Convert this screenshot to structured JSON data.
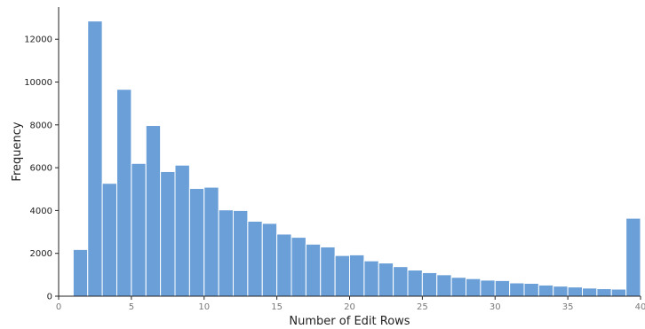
{
  "chart_data": {
    "type": "bar",
    "subtype": "histogram",
    "title": "",
    "xlabel": "Number of Edit Rows",
    "ylabel": "Frequency",
    "xlim": [
      0,
      40
    ],
    "ylim": [
      0,
      13500
    ],
    "bin_width": 1,
    "x_ticks": [
      0,
      5,
      10,
      15,
      20,
      25,
      30,
      35,
      40
    ],
    "y_ticks": [
      0,
      2000,
      4000,
      6000,
      8000,
      10000,
      12000
    ],
    "grid": false,
    "legend": "none",
    "bar_color": "#6a9fd8",
    "bar_edge_color": "#ffffff",
    "bins": [
      {
        "start": 1,
        "end": 2,
        "value": 2180
      },
      {
        "start": 2,
        "end": 3,
        "value": 12850
      },
      {
        "start": 3,
        "end": 4,
        "value": 5270
      },
      {
        "start": 4,
        "end": 5,
        "value": 9660
      },
      {
        "start": 5,
        "end": 6,
        "value": 6200
      },
      {
        "start": 6,
        "end": 7,
        "value": 7970
      },
      {
        "start": 7,
        "end": 8,
        "value": 5820
      },
      {
        "start": 8,
        "end": 9,
        "value": 6120
      },
      {
        "start": 9,
        "end": 10,
        "value": 5030
      },
      {
        "start": 10,
        "end": 11,
        "value": 5090
      },
      {
        "start": 11,
        "end": 12,
        "value": 4030
      },
      {
        "start": 12,
        "end": 13,
        "value": 4000
      },
      {
        "start": 13,
        "end": 14,
        "value": 3500
      },
      {
        "start": 14,
        "end": 15,
        "value": 3400
      },
      {
        "start": 15,
        "end": 16,
        "value": 2900
      },
      {
        "start": 16,
        "end": 17,
        "value": 2750
      },
      {
        "start": 17,
        "end": 18,
        "value": 2430
      },
      {
        "start": 18,
        "end": 19,
        "value": 2300
      },
      {
        "start": 19,
        "end": 20,
        "value": 1900
      },
      {
        "start": 20,
        "end": 21,
        "value": 1930
      },
      {
        "start": 21,
        "end": 22,
        "value": 1650
      },
      {
        "start": 22,
        "end": 23,
        "value": 1550
      },
      {
        "start": 23,
        "end": 24,
        "value": 1380
      },
      {
        "start": 24,
        "end": 25,
        "value": 1220
      },
      {
        "start": 25,
        "end": 26,
        "value": 1100
      },
      {
        "start": 26,
        "end": 27,
        "value": 1000
      },
      {
        "start": 27,
        "end": 28,
        "value": 880
      },
      {
        "start": 28,
        "end": 29,
        "value": 820
      },
      {
        "start": 29,
        "end": 30,
        "value": 750
      },
      {
        "start": 30,
        "end": 31,
        "value": 730
      },
      {
        "start": 31,
        "end": 32,
        "value": 620
      },
      {
        "start": 32,
        "end": 33,
        "value": 600
      },
      {
        "start": 33,
        "end": 34,
        "value": 520
      },
      {
        "start": 34,
        "end": 35,
        "value": 470
      },
      {
        "start": 35,
        "end": 36,
        "value": 430
      },
      {
        "start": 36,
        "end": 37,
        "value": 380
      },
      {
        "start": 37,
        "end": 38,
        "value": 350
      },
      {
        "start": 38,
        "end": 39,
        "value": 330
      },
      {
        "start": 39,
        "end": 40,
        "value": 3640
      }
    ]
  }
}
